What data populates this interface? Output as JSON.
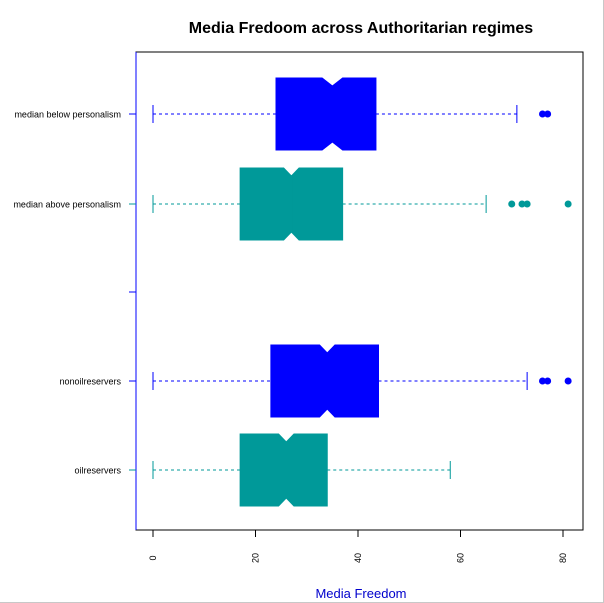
{
  "chart_data": {
    "type": "boxplot",
    "orientation": "horizontal",
    "notched": true,
    "title": "Media Fredoom across Authoritarian regimes",
    "xlabel": "Media Freedom",
    "ylabel": "",
    "xlim": [
      -3,
      84
    ],
    "xticks": [
      "0",
      "20",
      "40",
      "60",
      "80"
    ],
    "x_tick_values": [
      0,
      20,
      40,
      60,
      80
    ],
    "grid": false,
    "colors": {
      "blue": "#0000FF",
      "teal": "#009999",
      "axis_label": "#0000CC"
    },
    "groups": [
      {
        "label": "median below personalism",
        "color": "blue",
        "whisker_low": 0,
        "q1": 24,
        "median": 35,
        "q3": 43.5,
        "whisker_high": 71,
        "notch_low": 33,
        "notch_high": 37,
        "outliers": [
          76,
          77
        ]
      },
      {
        "label": "median above personalism",
        "color": "teal",
        "whisker_low": 0,
        "q1": 17,
        "median": 27,
        "q3": 37,
        "whisker_high": 65,
        "notch_low": 25.5,
        "notch_high": 28.5,
        "outliers": [
          70,
          72,
          73,
          81
        ]
      },
      {
        "label": "",
        "color": "blue",
        "empty": true
      },
      {
        "label": "nonoilreservers",
        "color": "blue",
        "whisker_low": 0,
        "q1": 23,
        "median": 34,
        "q3": 44,
        "whisker_high": 73,
        "notch_low": 32.5,
        "notch_high": 35.5,
        "outliers": [
          76,
          77,
          81
        ]
      },
      {
        "label": "oilreservers",
        "color": "teal",
        "whisker_low": 0,
        "q1": 17,
        "median": 26,
        "q3": 34,
        "whisker_high": 58,
        "notch_low": 24.5,
        "notch_high": 27.5,
        "outliers": []
      }
    ]
  }
}
